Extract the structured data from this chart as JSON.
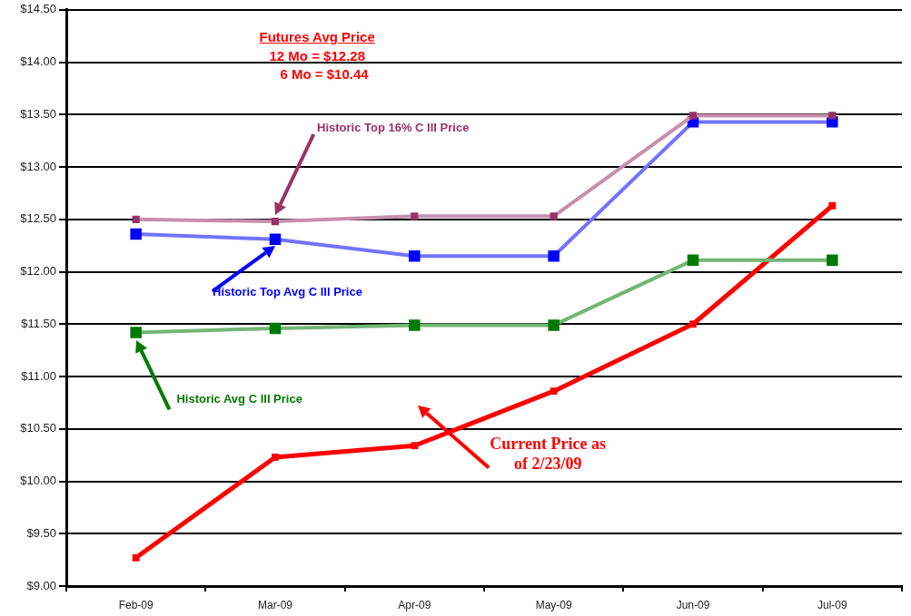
{
  "chart_data": {
    "type": "line",
    "categories": [
      "Feb-09",
      "Mar-09",
      "Apr-09",
      "May-09",
      "Jun-09",
      "Jul-09"
    ],
    "series": [
      {
        "name": "Historic Top 16% C III Price",
        "color": "#993366",
        "values": [
          12.5,
          12.48,
          12.53,
          12.53,
          13.49,
          13.49
        ]
      },
      {
        "name": "Historic Top Avg C III Price",
        "color": "#0000ff",
        "values": [
          12.36,
          12.31,
          12.15,
          12.15,
          13.43,
          13.43
        ]
      },
      {
        "name": "Historic Avg C III Price",
        "color": "#007a00",
        "values": [
          11.42,
          11.46,
          11.49,
          11.49,
          12.11,
          12.11
        ]
      },
      {
        "name": "Current Price as of 2/23/09",
        "color": "#ff0000",
        "values": [
          9.27,
          10.23,
          10.34,
          10.86,
          11.5,
          12.63
        ]
      }
    ],
    "ylim": [
      9,
      14.5
    ],
    "yticks": [
      {
        "value": 9,
        "label": "$9.00"
      },
      {
        "value": 9.5,
        "label": "$9.50"
      },
      {
        "value": 10,
        "label": "$10.00"
      },
      {
        "value": 10.5,
        "label": "$10.50"
      },
      {
        "value": 11,
        "label": "$11.00"
      },
      {
        "value": 11.5,
        "label": "$11.50"
      },
      {
        "value": 12,
        "label": "$12.00"
      },
      {
        "value": 12.5,
        "label": "$12.50"
      },
      {
        "value": 13,
        "label": "$13.00"
      },
      {
        "value": 13.5,
        "label": "$13.50"
      },
      {
        "value": 14,
        "label": "$14.00"
      },
      {
        "value": 14.5,
        "label": "$14.50"
      }
    ],
    "annotations": [
      "Futures Avg Price",
      "12 Mo = $12.28",
      "6 Mo = $10.44"
    ],
    "grid": "y",
    "legend": false,
    "marker": "square"
  }
}
